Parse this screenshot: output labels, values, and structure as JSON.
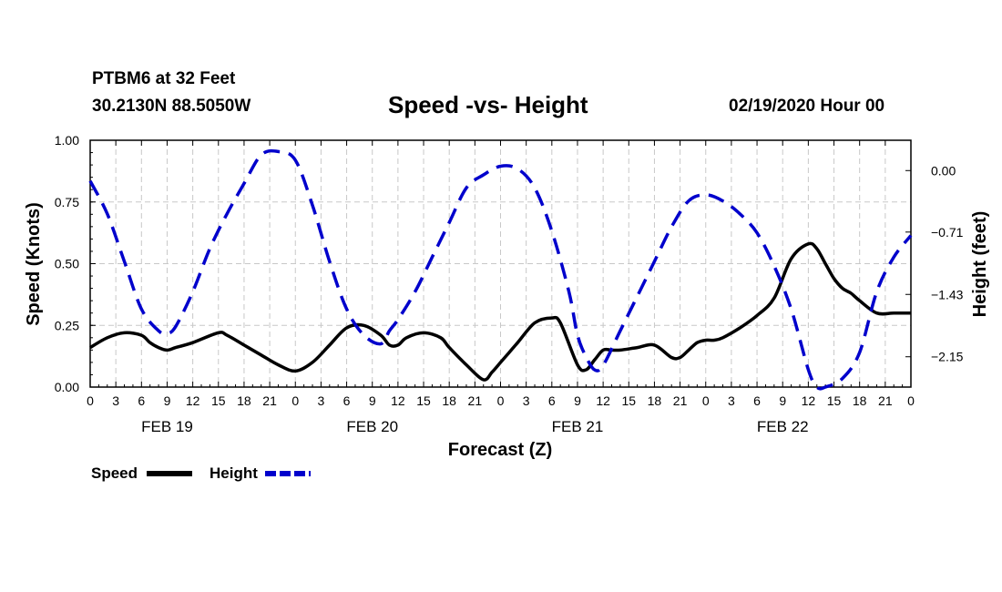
{
  "header": {
    "station": "PTBM6 at 32 Feet",
    "coords": "30.2130N 88.5050W",
    "datetime": "02/19/2020 Hour 00"
  },
  "chart_data": {
    "type": "line",
    "title": "Speed -vs- Height",
    "xlabel": "Forecast (Z)",
    "ylabel": "Speed (Knots)",
    "y2label": "Height (feet)",
    "ylim": [
      0.0,
      1.0
    ],
    "y2lim": [
      -2.5,
      0.35
    ],
    "xlim": [
      0,
      96
    ],
    "grid": true,
    "legend_position": "bottom-left",
    "x_tick_labels": [
      "0",
      "3",
      "6",
      "9",
      "12",
      "15",
      "18",
      "21",
      "0",
      "3",
      "6",
      "9",
      "12",
      "15",
      "18",
      "21",
      "0",
      "3",
      "6",
      "9",
      "12",
      "15",
      "18",
      "21",
      "0",
      "3",
      "6",
      "9",
      "12",
      "15",
      "18",
      "21",
      "0"
    ],
    "x_tick_hours": [
      0,
      3,
      6,
      9,
      12,
      15,
      18,
      21,
      24,
      27,
      30,
      33,
      36,
      39,
      42,
      45,
      48,
      51,
      54,
      57,
      60,
      63,
      66,
      69,
      72,
      75,
      78,
      81,
      84,
      87,
      90,
      93,
      96
    ],
    "date_labels": [
      {
        "label": "FEB 19",
        "hour": 9
      },
      {
        "label": "FEB 20",
        "hour": 33
      },
      {
        "label": "FEB 21",
        "hour": 57
      },
      {
        "label": "FEB 22",
        "hour": 81
      }
    ],
    "y_ticks": [
      "0.00",
      "0.25",
      "0.50",
      "0.75",
      "1.00"
    ],
    "y2_ticks": [
      "0.00",
      "-0.71",
      "-1.43",
      "-2.15"
    ],
    "series": [
      {
        "name": "Speed",
        "axis": "left",
        "color": "#000000",
        "dash": "solid",
        "x": [
          0,
          2,
          4,
          6,
          7,
          8,
          9,
          10,
          12,
          15,
          16,
          18,
          20,
          22,
          24,
          26,
          28,
          30,
          32,
          34,
          35,
          36,
          37,
          39,
          41,
          42,
          44,
          46,
          47,
          48,
          49,
          50,
          52,
          54,
          55,
          57,
          58,
          59,
          60,
          61,
          62,
          64,
          66,
          68,
          69,
          70,
          71,
          72,
          73,
          74,
          76,
          78,
          80,
          82,
          84,
          85,
          86,
          87,
          88,
          89,
          90,
          92,
          94,
          96
        ],
        "values": [
          0.16,
          0.2,
          0.22,
          0.21,
          0.18,
          0.16,
          0.15,
          0.16,
          0.18,
          0.22,
          0.21,
          0.17,
          0.13,
          0.09,
          0.065,
          0.1,
          0.17,
          0.24,
          0.25,
          0.21,
          0.17,
          0.17,
          0.2,
          0.22,
          0.2,
          0.16,
          0.09,
          0.03,
          0.06,
          0.1,
          0.14,
          0.18,
          0.26,
          0.28,
          0.26,
          0.09,
          0.07,
          0.11,
          0.15,
          0.15,
          0.15,
          0.16,
          0.17,
          0.12,
          0.12,
          0.15,
          0.18,
          0.19,
          0.19,
          0.2,
          0.24,
          0.29,
          0.36,
          0.52,
          0.58,
          0.56,
          0.5,
          0.44,
          0.4,
          0.38,
          0.35,
          0.3,
          0.3,
          0.3
        ]
      },
      {
        "name": "Height",
        "axis": "right",
        "color": "#0000cc",
        "dash": "dashed",
        "x": [
          0,
          2,
          4,
          6,
          8,
          9,
          10,
          12,
          14,
          16,
          18,
          20,
          22,
          24,
          26,
          28,
          30,
          32,
          34,
          35,
          36,
          38,
          40,
          42,
          44,
          46,
          48,
          50,
          52,
          54,
          56,
          57,
          58,
          59,
          60,
          62,
          64,
          66,
          68,
          70,
          72,
          74,
          76,
          78,
          80,
          82,
          84,
          85,
          86,
          88,
          90,
          92,
          94,
          96
        ],
        "values": [
          -0.12,
          -0.5,
          -1.05,
          -1.6,
          -1.85,
          -1.88,
          -1.8,
          -1.4,
          -0.9,
          -0.5,
          -0.15,
          0.18,
          0.22,
          0.12,
          -0.4,
          -1.05,
          -1.6,
          -1.9,
          -2.0,
          -1.85,
          -1.72,
          -1.4,
          -1.0,
          -0.6,
          -0.2,
          -0.05,
          0.05,
          0.02,
          -0.2,
          -0.7,
          -1.4,
          -1.9,
          -2.15,
          -2.3,
          -2.25,
          -1.85,
          -1.45,
          -1.05,
          -0.65,
          -0.35,
          -0.28,
          -0.35,
          -0.5,
          -0.72,
          -1.1,
          -1.6,
          -2.3,
          -2.5,
          -2.5,
          -2.4,
          -2.1,
          -1.4,
          -1.0,
          -0.75
        ]
      }
    ]
  }
}
